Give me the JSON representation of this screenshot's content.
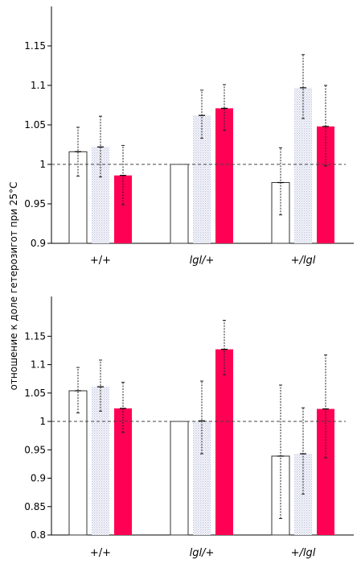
{
  "ylabel": "отношение к доле гетерозигот при 25°С",
  "colors": {
    "hollow": "#ffffff",
    "dotted": "#dde0ee",
    "solid": "#ff0055",
    "axis": "#000000",
    "reference": "#444444"
  },
  "chart_data": [
    {
      "type": "bar",
      "reference_line": 1,
      "grid": false,
      "ylim": [
        0.9,
        1.2
      ],
      "yticks": [
        0.9,
        0.95,
        1,
        1.05,
        1.1,
        1.15
      ],
      "yticklabels": [
        "0.9",
        "0.95",
        "1",
        "1.05",
        "1.1",
        "1.15"
      ],
      "categories": [
        "+/+",
        "lgl/+",
        "+/lgl"
      ],
      "category_italic": [
        false,
        true,
        true
      ],
      "series": [
        {
          "style": "hollow",
          "values": [
            1.016,
            1.0,
            0.977
          ],
          "err_low": [
            0.985,
            null,
            0.936
          ],
          "err_high": [
            1.047,
            null,
            1.021
          ]
        },
        {
          "style": "dotted",
          "values": [
            1.022,
            1.062,
            1.097
          ],
          "err_low": [
            0.984,
            1.033,
            1.058
          ],
          "err_high": [
            1.061,
            1.094,
            1.139
          ]
        },
        {
          "style": "solid",
          "values": [
            0.986,
            1.071,
            1.048
          ],
          "err_low": [
            0.949,
            1.043,
            0.998
          ],
          "err_high": [
            1.024,
            1.101,
            1.1
          ]
        }
      ]
    },
    {
      "type": "bar",
      "reference_line": 1,
      "grid": false,
      "ylim": [
        0.8,
        1.22
      ],
      "yticks": [
        0.8,
        0.85,
        0.9,
        0.95,
        1,
        1.05,
        1.1,
        1.15
      ],
      "yticklabels": [
        "0.8",
        "0.85",
        "0.9",
        "0.95",
        "1",
        "1.05",
        "1.1",
        "1.15"
      ],
      "categories": [
        "+/+",
        "lgl/+",
        "+/lgl"
      ],
      "category_italic": [
        false,
        true,
        true
      ],
      "series": [
        {
          "style": "hollow",
          "values": [
            1.054,
            1.0,
            0.939
          ],
          "err_low": [
            1.015,
            null,
            0.829
          ],
          "err_high": [
            1.095,
            null,
            1.064
          ]
        },
        {
          "style": "dotted",
          "values": [
            1.061,
            1.001,
            0.943
          ],
          "err_low": [
            1.018,
            0.943,
            0.872
          ],
          "err_high": [
            1.108,
            1.071,
            1.024
          ]
        },
        {
          "style": "solid",
          "values": [
            1.023,
            1.127,
            1.022
          ],
          "err_low": [
            0.981,
            1.082,
            0.936
          ],
          "err_high": [
            1.069,
            1.178,
            1.117
          ]
        }
      ]
    }
  ]
}
